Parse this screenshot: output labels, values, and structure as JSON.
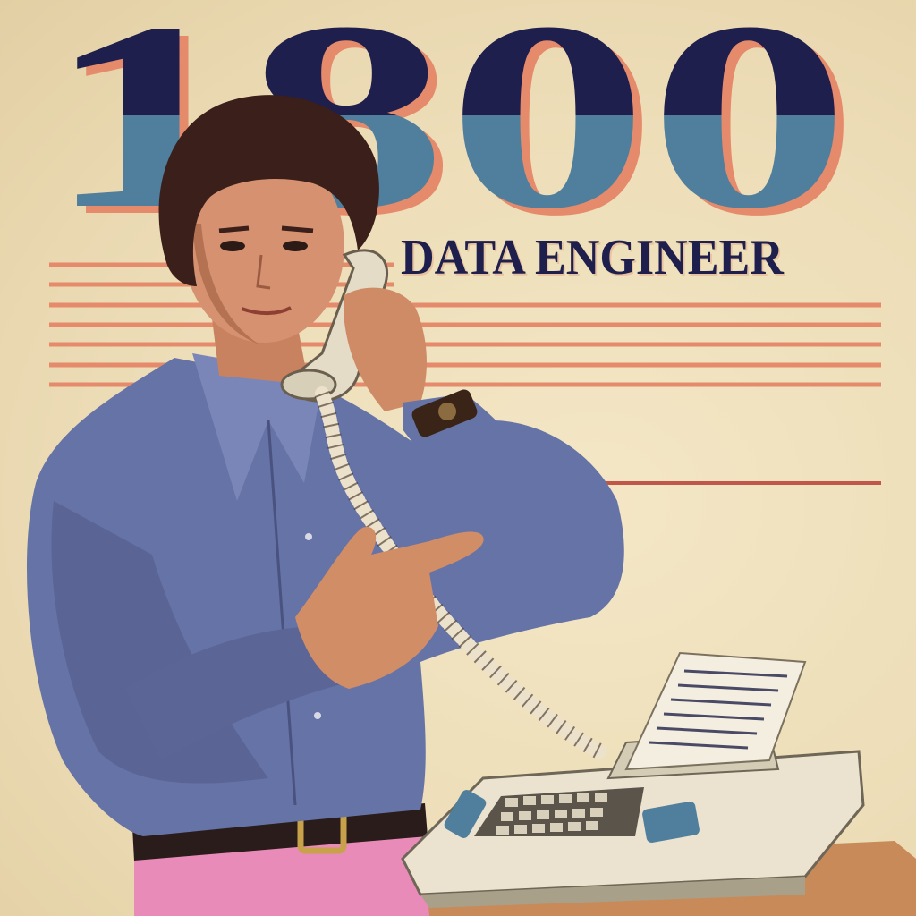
{
  "poster": {
    "number": "1800",
    "headline": "DATA ENGINEER"
  },
  "colors": {
    "background": "#efe1bd",
    "navy": "#1e1f4c",
    "steel_blue": "#4f7f9c",
    "coral": "#e58a6a",
    "shirt": "#6673a6",
    "pants": "#e98bb8",
    "terminal": "#ebe3cf"
  },
  "scene": {
    "subject": "man-on-phone",
    "objects": [
      "telephone-handset",
      "coiled-cord",
      "wristwatch",
      "belt",
      "computer-terminal",
      "printout-paper"
    ],
    "decor": [
      "stripe-lines",
      "underline"
    ]
  }
}
